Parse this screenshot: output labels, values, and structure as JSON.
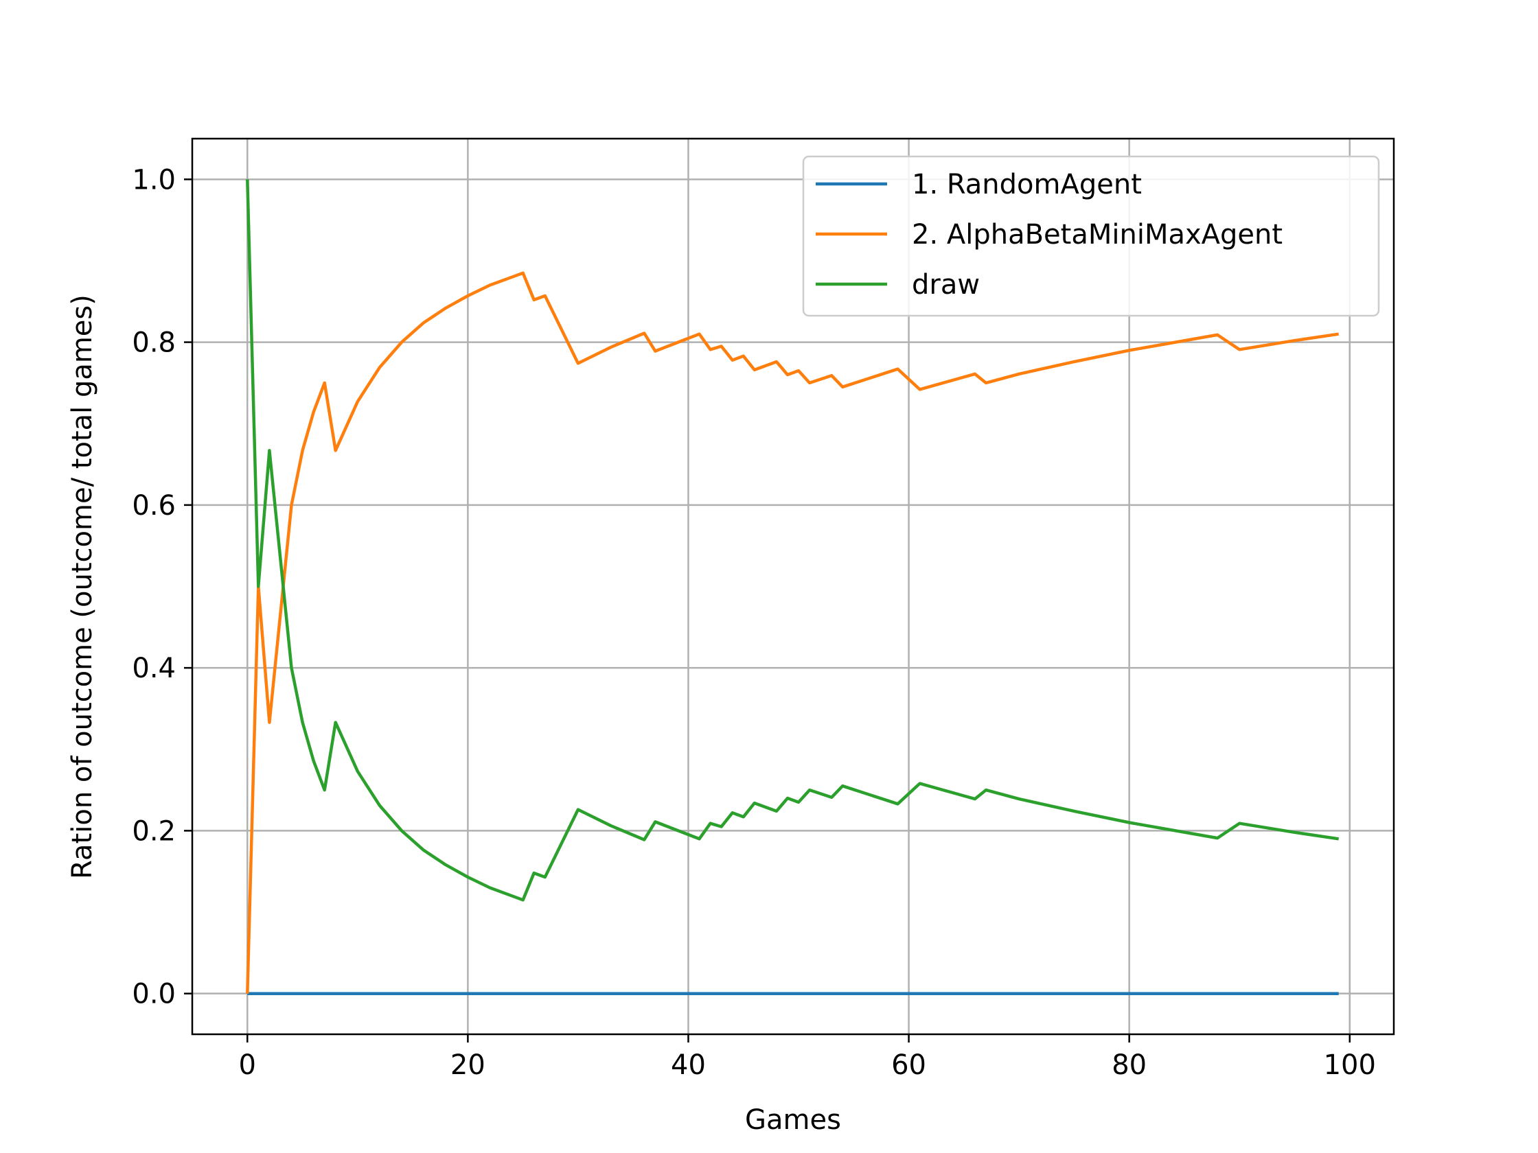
{
  "chart_data": {
    "type": "line",
    "xlabel": "Games",
    "ylabel": "Ration of outcome (outcome/ total games)",
    "xlim": [
      -5,
      104
    ],
    "ylim": [
      -0.05,
      1.05
    ],
    "x_ticks": [
      0,
      20,
      40,
      60,
      80,
      100
    ],
    "x_tick_labels": [
      "0",
      "20",
      "40",
      "60",
      "80",
      "100"
    ],
    "y_ticks": [
      0.0,
      0.2,
      0.4,
      0.6,
      0.8,
      1.0
    ],
    "y_tick_labels": [
      "0.0",
      "0.2",
      "0.4",
      "0.6",
      "0.8",
      "1.0"
    ],
    "grid": true,
    "legend_position": "top-right",
    "series": [
      {
        "name": "1. RandomAgent",
        "color": "#1f77b4",
        "x": [
          0,
          99
        ],
        "y": [
          0.0,
          0.0
        ]
      },
      {
        "name": "2. AlphaBetaMiniMaxAgent",
        "color": "#ff7f0e",
        "x": [
          0,
          1,
          2,
          4,
          5,
          6,
          7,
          8,
          10,
          12,
          14,
          16,
          18,
          20,
          22,
          25,
          26,
          27,
          30,
          33,
          36,
          37,
          41,
          42,
          43,
          44,
          45,
          46,
          48,
          49,
          50,
          51,
          53,
          54,
          59,
          61,
          66,
          67,
          70,
          75,
          80,
          88,
          90,
          95,
          99
        ],
        "y": [
          0.0,
          0.5,
          0.333,
          0.6,
          0.667,
          0.714,
          0.75,
          0.667,
          0.727,
          0.769,
          0.8,
          0.824,
          0.842,
          0.857,
          0.87,
          0.885,
          0.852,
          0.857,
          0.774,
          0.794,
          0.811,
          0.789,
          0.81,
          0.791,
          0.795,
          0.778,
          0.783,
          0.766,
          0.776,
          0.76,
          0.765,
          0.75,
          0.759,
          0.745,
          0.767,
          0.742,
          0.761,
          0.75,
          0.761,
          0.776,
          0.79,
          0.809,
          0.791,
          0.802,
          0.81
        ]
      },
      {
        "name": "draw",
        "color": "#2ca02c",
        "x": [
          0,
          1,
          2,
          4,
          5,
          6,
          7,
          8,
          10,
          12,
          14,
          16,
          18,
          20,
          22,
          25,
          26,
          27,
          30,
          33,
          36,
          37,
          41,
          42,
          43,
          44,
          45,
          46,
          48,
          49,
          50,
          51,
          53,
          54,
          59,
          61,
          66,
          67,
          70,
          75,
          80,
          88,
          90,
          95,
          99
        ],
        "y": [
          1.0,
          0.5,
          0.667,
          0.4,
          0.333,
          0.286,
          0.25,
          0.333,
          0.273,
          0.231,
          0.2,
          0.176,
          0.158,
          0.143,
          0.13,
          0.115,
          0.148,
          0.143,
          0.226,
          0.206,
          0.189,
          0.211,
          0.19,
          0.209,
          0.205,
          0.222,
          0.217,
          0.234,
          0.224,
          0.24,
          0.235,
          0.25,
          0.241,
          0.255,
          0.233,
          0.258,
          0.239,
          0.25,
          0.239,
          0.224,
          0.21,
          0.191,
          0.209,
          0.198,
          0.19
        ]
      }
    ]
  }
}
